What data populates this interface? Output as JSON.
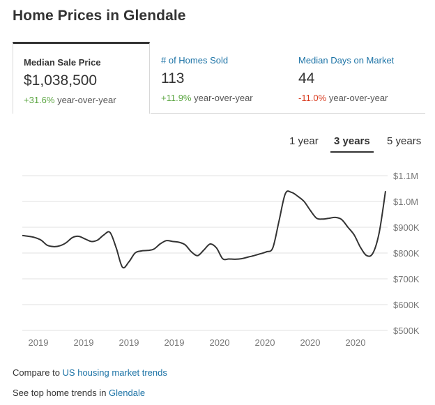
{
  "title": "Home Prices in Glendale",
  "stats": [
    {
      "label": "Median Sale Price",
      "value": "$1,038,500",
      "change": "+31.6%",
      "change_suffix": " year-over-year",
      "change_color": "#5aa540"
    },
    {
      "label": "# of Homes Sold",
      "value": "113",
      "change": "+11.9%",
      "change_suffix": " year-over-year",
      "change_color": "#5aa540"
    },
    {
      "label": "Median Days on Market",
      "value": "44",
      "change": "-11.0%",
      "change_suffix": " year-over-year",
      "change_color": "#d93b1f"
    }
  ],
  "ranges": [
    "1 year",
    "3 years",
    "5 years"
  ],
  "selected_range": "3 years",
  "chart_data": {
    "type": "line",
    "y_ticks": [
      "$1.1M",
      "$1.0M",
      "$900K",
      "$800K",
      "$700K",
      "$600K",
      "$500K"
    ],
    "ylim": [
      500000,
      1100000
    ],
    "x_ticks": [
      "2019",
      "2019",
      "2019",
      "2019",
      "2020",
      "2020",
      "2020",
      "2020"
    ],
    "grid": true,
    "line_color": "#333333",
    "series": [
      {
        "values": [
          868000,
          865000,
          860000,
          850000,
          830000,
          825000,
          828000,
          840000,
          860000,
          865000,
          855000,
          845000,
          850000,
          870000,
          880000,
          820000,
          745000,
          765000,
          800000,
          808000,
          810000,
          815000,
          835000,
          848000,
          845000,
          842000,
          832000,
          805000,
          790000,
          812000,
          835000,
          820000,
          778000,
          777000,
          776000,
          778000,
          784000,
          790000,
          797000,
          805000,
          820000,
          925000,
          1030000,
          1035000,
          1020000,
          1000000,
          965000,
          935000,
          932000,
          935000,
          938000,
          930000,
          900000,
          870000,
          822000,
          790000,
          800000,
          880000,
          1040000
        ]
      }
    ]
  },
  "footer": {
    "compare_prefix": "Compare to ",
    "compare_link": "US housing market trends",
    "trends_prefix": "See top home trends in ",
    "trends_link": "Glendale"
  }
}
